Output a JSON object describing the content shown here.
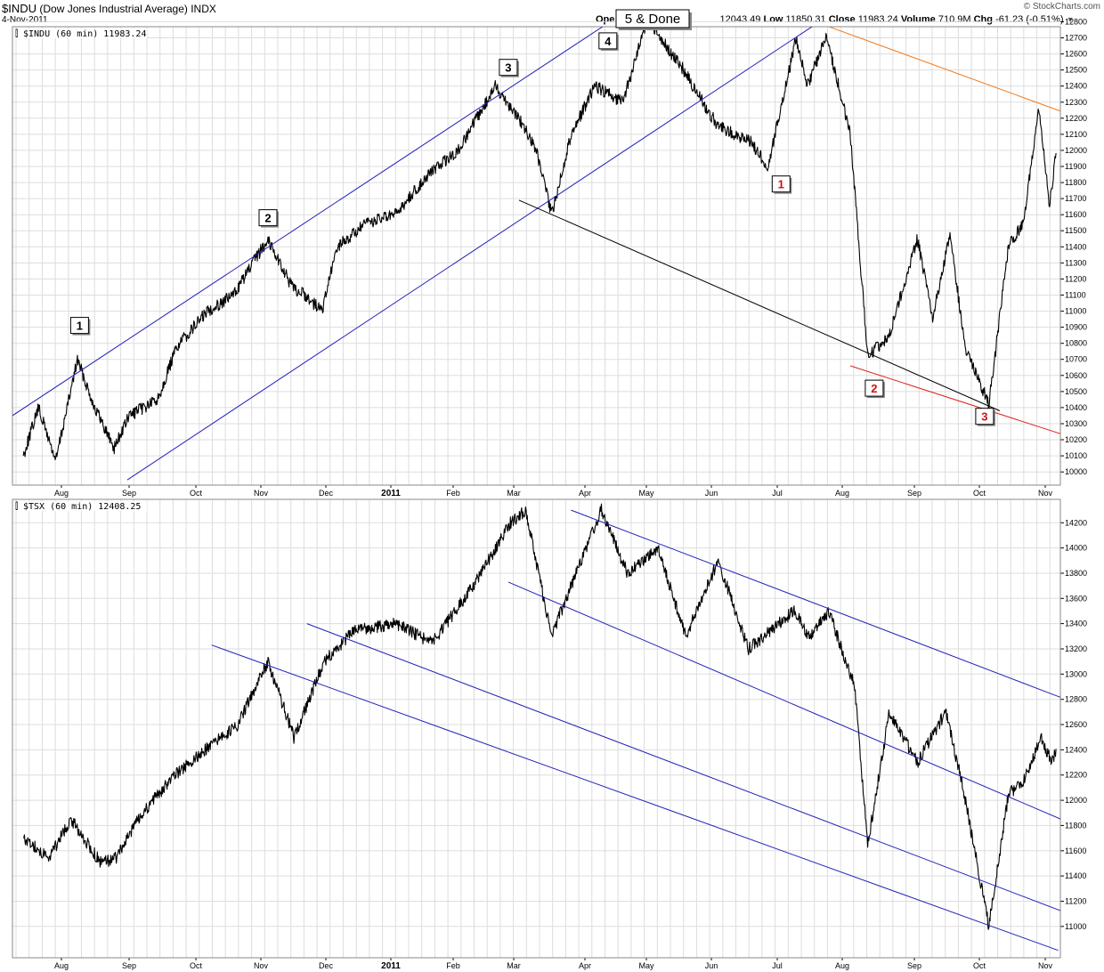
{
  "header": {
    "symbol": "$INDU",
    "name": "(Dow Jones Industrial Average) INDX",
    "date": "4-Nov-2011",
    "open_label": "Ope",
    "high_value": "12043.49",
    "low_label": "Low",
    "low_value": "11850.31",
    "close_label": "Close",
    "close_value": "11983.24",
    "volume_label": "Volume",
    "volume_value": "710.9M",
    "chg_label": "Chg",
    "chg_value": "-61.23 (-0.51%)",
    "watermark": "© StockCharts.com"
  },
  "colors": {
    "price": "#000000",
    "channel_blue": "#2222bb",
    "trend_orange": "#f07a1e",
    "trend_red": "#e02020",
    "trend_black": "#000000",
    "grid": "#dddddd",
    "wave_red": "#d01010"
  },
  "annotation": "5 & Done",
  "x_axis": {
    "months": [
      "Aug",
      "Sep",
      "Oct",
      "Nov",
      "Dec",
      "2011",
      "Feb",
      "Mar",
      "Apr",
      "May",
      "Jun",
      "Jul",
      "Aug",
      "Sep",
      "Oct",
      "Nov"
    ]
  },
  "chart_data": [
    {
      "type": "line",
      "title": "$INDU (60 min) 11983.24",
      "ylim": [
        9940,
        12880
      ],
      "yticks": [
        10000,
        10100,
        10200,
        10300,
        10400,
        10500,
        10600,
        10700,
        10800,
        10900,
        11000,
        11100,
        11200,
        11300,
        11400,
        11500,
        11600,
        11700,
        11800,
        11900,
        12000,
        12100,
        12200,
        12300,
        12400,
        12500,
        12600,
        12700,
        12800
      ],
      "x": [
        "2010-07-15",
        "2010-07-22",
        "2010-07-30",
        "2010-08-09",
        "2010-08-17",
        "2010-08-26",
        "2010-09-02",
        "2010-09-15",
        "2010-09-24",
        "2010-10-08",
        "2010-10-20",
        "2010-11-05",
        "2010-11-16",
        "2010-11-22",
        "2010-11-30",
        "2010-12-07",
        "2010-12-21",
        "2011-01-03",
        "2011-01-18",
        "2011-02-01",
        "2011-02-18",
        "2011-03-01",
        "2011-03-09",
        "2011-03-16",
        "2011-03-25",
        "2011-04-05",
        "2011-04-18",
        "2011-04-29",
        "2011-05-05",
        "2011-05-16",
        "2011-05-27",
        "2011-06-01",
        "2011-06-16",
        "2011-06-24",
        "2011-07-07",
        "2011-07-12",
        "2011-07-21",
        "2011-08-01",
        "2011-08-09",
        "2011-08-19",
        "2011-09-01",
        "2011-09-08",
        "2011-09-16",
        "2011-09-23",
        "2011-10-04",
        "2011-10-13",
        "2011-10-20",
        "2011-10-27",
        "2011-11-01",
        "2011-11-04"
      ],
      "series": [
        {
          "values": [
            10100,
            10400,
            10070,
            10700,
            10400,
            10150,
            10350,
            10450,
            10780,
            11000,
            11100,
            11450,
            11150,
            11100,
            11000,
            11400,
            11550,
            11600,
            11850,
            12000,
            12400,
            12200,
            12000,
            11600,
            12100,
            12400,
            12300,
            12810,
            12700,
            12500,
            12250,
            12150,
            12050,
            11900,
            12700,
            12400,
            12710,
            12100,
            10720,
            10850,
            11450,
            10950,
            11480,
            10780,
            10420,
            11400,
            11550,
            12280,
            11650,
            11983
          ]
        }
      ],
      "wave_labels": [
        {
          "label": "1",
          "color": "black",
          "x": "2010-08-10",
          "y": 10900
        },
        {
          "label": "2",
          "color": "black",
          "x": "2010-11-05",
          "y": 11570
        },
        {
          "label": "3",
          "color": "black",
          "x": "2011-02-24",
          "y": 12505
        },
        {
          "label": "4",
          "color": "black",
          "x": "2011-04-11",
          "y": 12670
        },
        {
          "label": "1",
          "color": "red",
          "x": "2011-06-30",
          "y": 11780
        },
        {
          "label": "2",
          "color": "red",
          "x": "2011-08-12",
          "y": 10510
        },
        {
          "label": "3",
          "color": "red",
          "x": "2011-10-02",
          "y": 10335
        }
      ],
      "trendlines": [
        {
          "color": "blue",
          "points": [
            [
              "2010-07-10",
              10350
            ],
            [
              "2011-04-21",
              12880
            ]
          ]
        },
        {
          "color": "blue",
          "points": [
            [
              "2010-09-01",
              9950
            ],
            [
              "2011-07-20",
              12820
            ]
          ]
        },
        {
          "color": "black",
          "points": [
            [
              "2011-03-01",
              11690
            ],
            [
              "2011-10-09",
              10380
            ]
          ]
        },
        {
          "color": "red",
          "points": [
            [
              "2011-08-01",
              10660
            ],
            [
              "2011-11-10",
              10220
            ]
          ]
        },
        {
          "color": "orange",
          "points": [
            [
              "2011-07-20",
              12780
            ],
            [
              "2011-11-13",
              12210
            ]
          ]
        }
      ]
    },
    {
      "type": "line",
      "title": "$TSX (60 min) 12408.25",
      "ylim": [
        10780,
        14350
      ],
      "yticks": [
        11000,
        11200,
        11400,
        11600,
        11800,
        12000,
        12200,
        12400,
        12600,
        12800,
        13000,
        13200,
        13400,
        13600,
        13800,
        14000,
        14200
      ],
      "x": [
        "2010-07-15",
        "2010-07-27",
        "2010-08-06",
        "2010-08-20",
        "2010-08-27",
        "2010-09-08",
        "2010-09-23",
        "2010-10-07",
        "2010-10-22",
        "2010-11-05",
        "2010-11-17",
        "2010-12-01",
        "2010-12-15",
        "2011-01-03",
        "2011-01-20",
        "2011-02-08",
        "2011-02-25",
        "2011-03-04",
        "2011-03-16",
        "2011-03-25",
        "2011-04-08",
        "2011-04-20",
        "2011-05-04",
        "2011-05-17",
        "2011-06-01",
        "2011-06-15",
        "2011-07-06",
        "2011-07-13",
        "2011-07-22",
        "2011-08-03",
        "2011-08-09",
        "2011-08-19",
        "2011-09-01",
        "2011-09-14",
        "2011-09-22",
        "2011-10-04",
        "2011-10-13",
        "2011-10-20",
        "2011-10-28",
        "2011-11-02",
        "2011-11-04"
      ],
      "series": [
        {
          "values": [
            11700,
            11550,
            11850,
            11500,
            11550,
            11900,
            12200,
            12400,
            12600,
            13100,
            12500,
            13100,
            13350,
            13400,
            13250,
            13700,
            14200,
            14300,
            13300,
            13700,
            14300,
            13800,
            14000,
            13300,
            13900,
            13200,
            13500,
            13300,
            13500,
            12900,
            11650,
            12700,
            12300,
            12700,
            12100,
            11000,
            12050,
            12150,
            12500,
            12300,
            12408
          ]
        }
      ],
      "trendlines": [
        {
          "color": "blue",
          "points": [
            [
              "2011-03-25",
              14300
            ],
            [
              "2011-11-13",
              12770
            ]
          ]
        },
        {
          "color": "blue",
          "points": [
            [
              "2011-02-24",
              13730
            ],
            [
              "2011-11-13",
              11800
            ]
          ]
        },
        {
          "color": "blue",
          "points": [
            [
              "2010-11-23",
              13400
            ],
            [
              "2011-11-13",
              11080
            ]
          ]
        },
        {
          "color": "blue",
          "points": [
            [
              "2010-10-10",
              13230
            ],
            [
              "2011-11-05",
              10810
            ]
          ]
        }
      ]
    }
  ]
}
